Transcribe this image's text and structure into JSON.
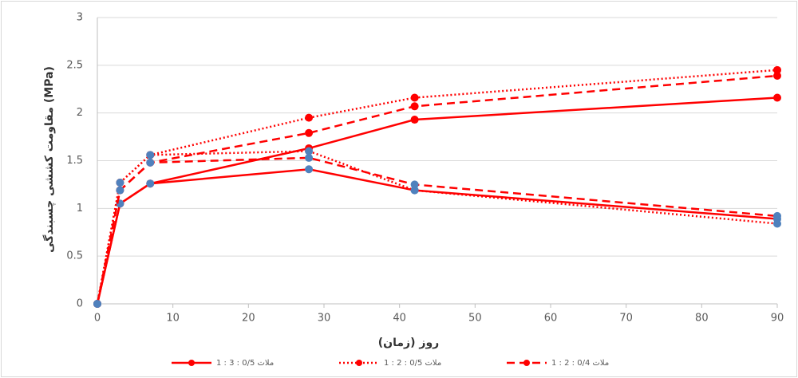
{
  "chart_data": {
    "type": "line",
    "y_label": "مقاومت کششی چسبندگی (MPa)",
    "x_label": "روز (زمان)",
    "x": [
      0,
      3,
      7,
      28,
      42,
      90
    ],
    "xlim": [
      0,
      90
    ],
    "xticks": [
      0,
      10,
      20,
      30,
      40,
      50,
      60,
      70,
      80,
      90
    ],
    "ylim": [
      0,
      3
    ],
    "yticks": [
      0,
      0.5,
      1,
      1.5,
      2,
      2.5,
      3
    ],
    "grid": true,
    "legend": "bottom",
    "series": [
      {
        "name": "ملات 0/5 : 3 : 1",
        "color": "#ff0000",
        "marker_color": "#ff0000",
        "dash": "solid",
        "values": [
          0,
          1.05,
          1.26,
          1.63,
          1.93,
          2.16
        ]
      },
      {
        "name": "ملات 0/5 : 2 : 1",
        "color": "#ff0000",
        "marker_color": "#ff0000",
        "dash": "dotted",
        "values": [
          0,
          1.27,
          1.56,
          1.95,
          2.16,
          2.45
        ]
      },
      {
        "name": "ملات 0/4 : 2 : 1",
        "color": "#ff0000",
        "marker_color": "#ff0000",
        "dash": "dashed",
        "values": [
          0,
          1.19,
          1.48,
          1.79,
          2.07,
          2.39
        ]
      },
      {
        "color": "#ff0000",
        "marker_color": "#4f81bd",
        "dash": "solid",
        "values": [
          0,
          1.05,
          1.26,
          1.41,
          1.19,
          0.89
        ]
      },
      {
        "color": "#ff0000",
        "marker_color": "#4f81bd",
        "dash": "dotted",
        "values": [
          0,
          1.27,
          1.56,
          1.6,
          1.19,
          0.84
        ]
      },
      {
        "color": "#ff0000",
        "marker_color": "#4f81bd",
        "dash": "dashed",
        "values": [
          0,
          1.19,
          1.48,
          1.53,
          1.25,
          0.92
        ]
      }
    ]
  }
}
